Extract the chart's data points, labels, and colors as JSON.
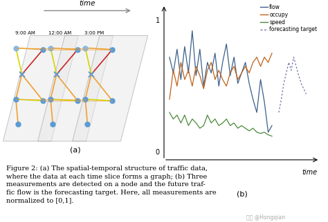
{
  "fig_width": 4.74,
  "fig_height": 3.22,
  "dpi": 100,
  "bg_color": "#ffffff",
  "caption_line1": "Figure 2: (a) The spatial-temporal structure of traffic data,",
  "caption_line2": "where the data at each time slice forms a graph; (b) Three",
  "caption_line3": "measurements are detected on a node and the future traf-",
  "caption_line4": "fic flow is the forecasting target. Here, all measurements are",
  "caption_line5": "normalized to [0,1].",
  "caption_fontsize": 7.0,
  "watermark": "知乎 @Hongqian",
  "time_labels": [
    "9:00 AM",
    "12:00 AM",
    "3:00 PM"
  ],
  "node_color": "#5b9bd5",
  "node_color_light": "#8ab8e0",
  "edge_orange": "#f0a030",
  "edge_yellow": "#d4d400",
  "edge_red": "#cc2222",
  "cross_color": "#6699cc",
  "flow_color": "#3a5f8a",
  "occupy_color": "#c0621a",
  "speed_color": "#4a8a3a",
  "forecast_color": "#7070aa",
  "slice_face": "#e8e8e8",
  "slice_edge": "#999999"
}
